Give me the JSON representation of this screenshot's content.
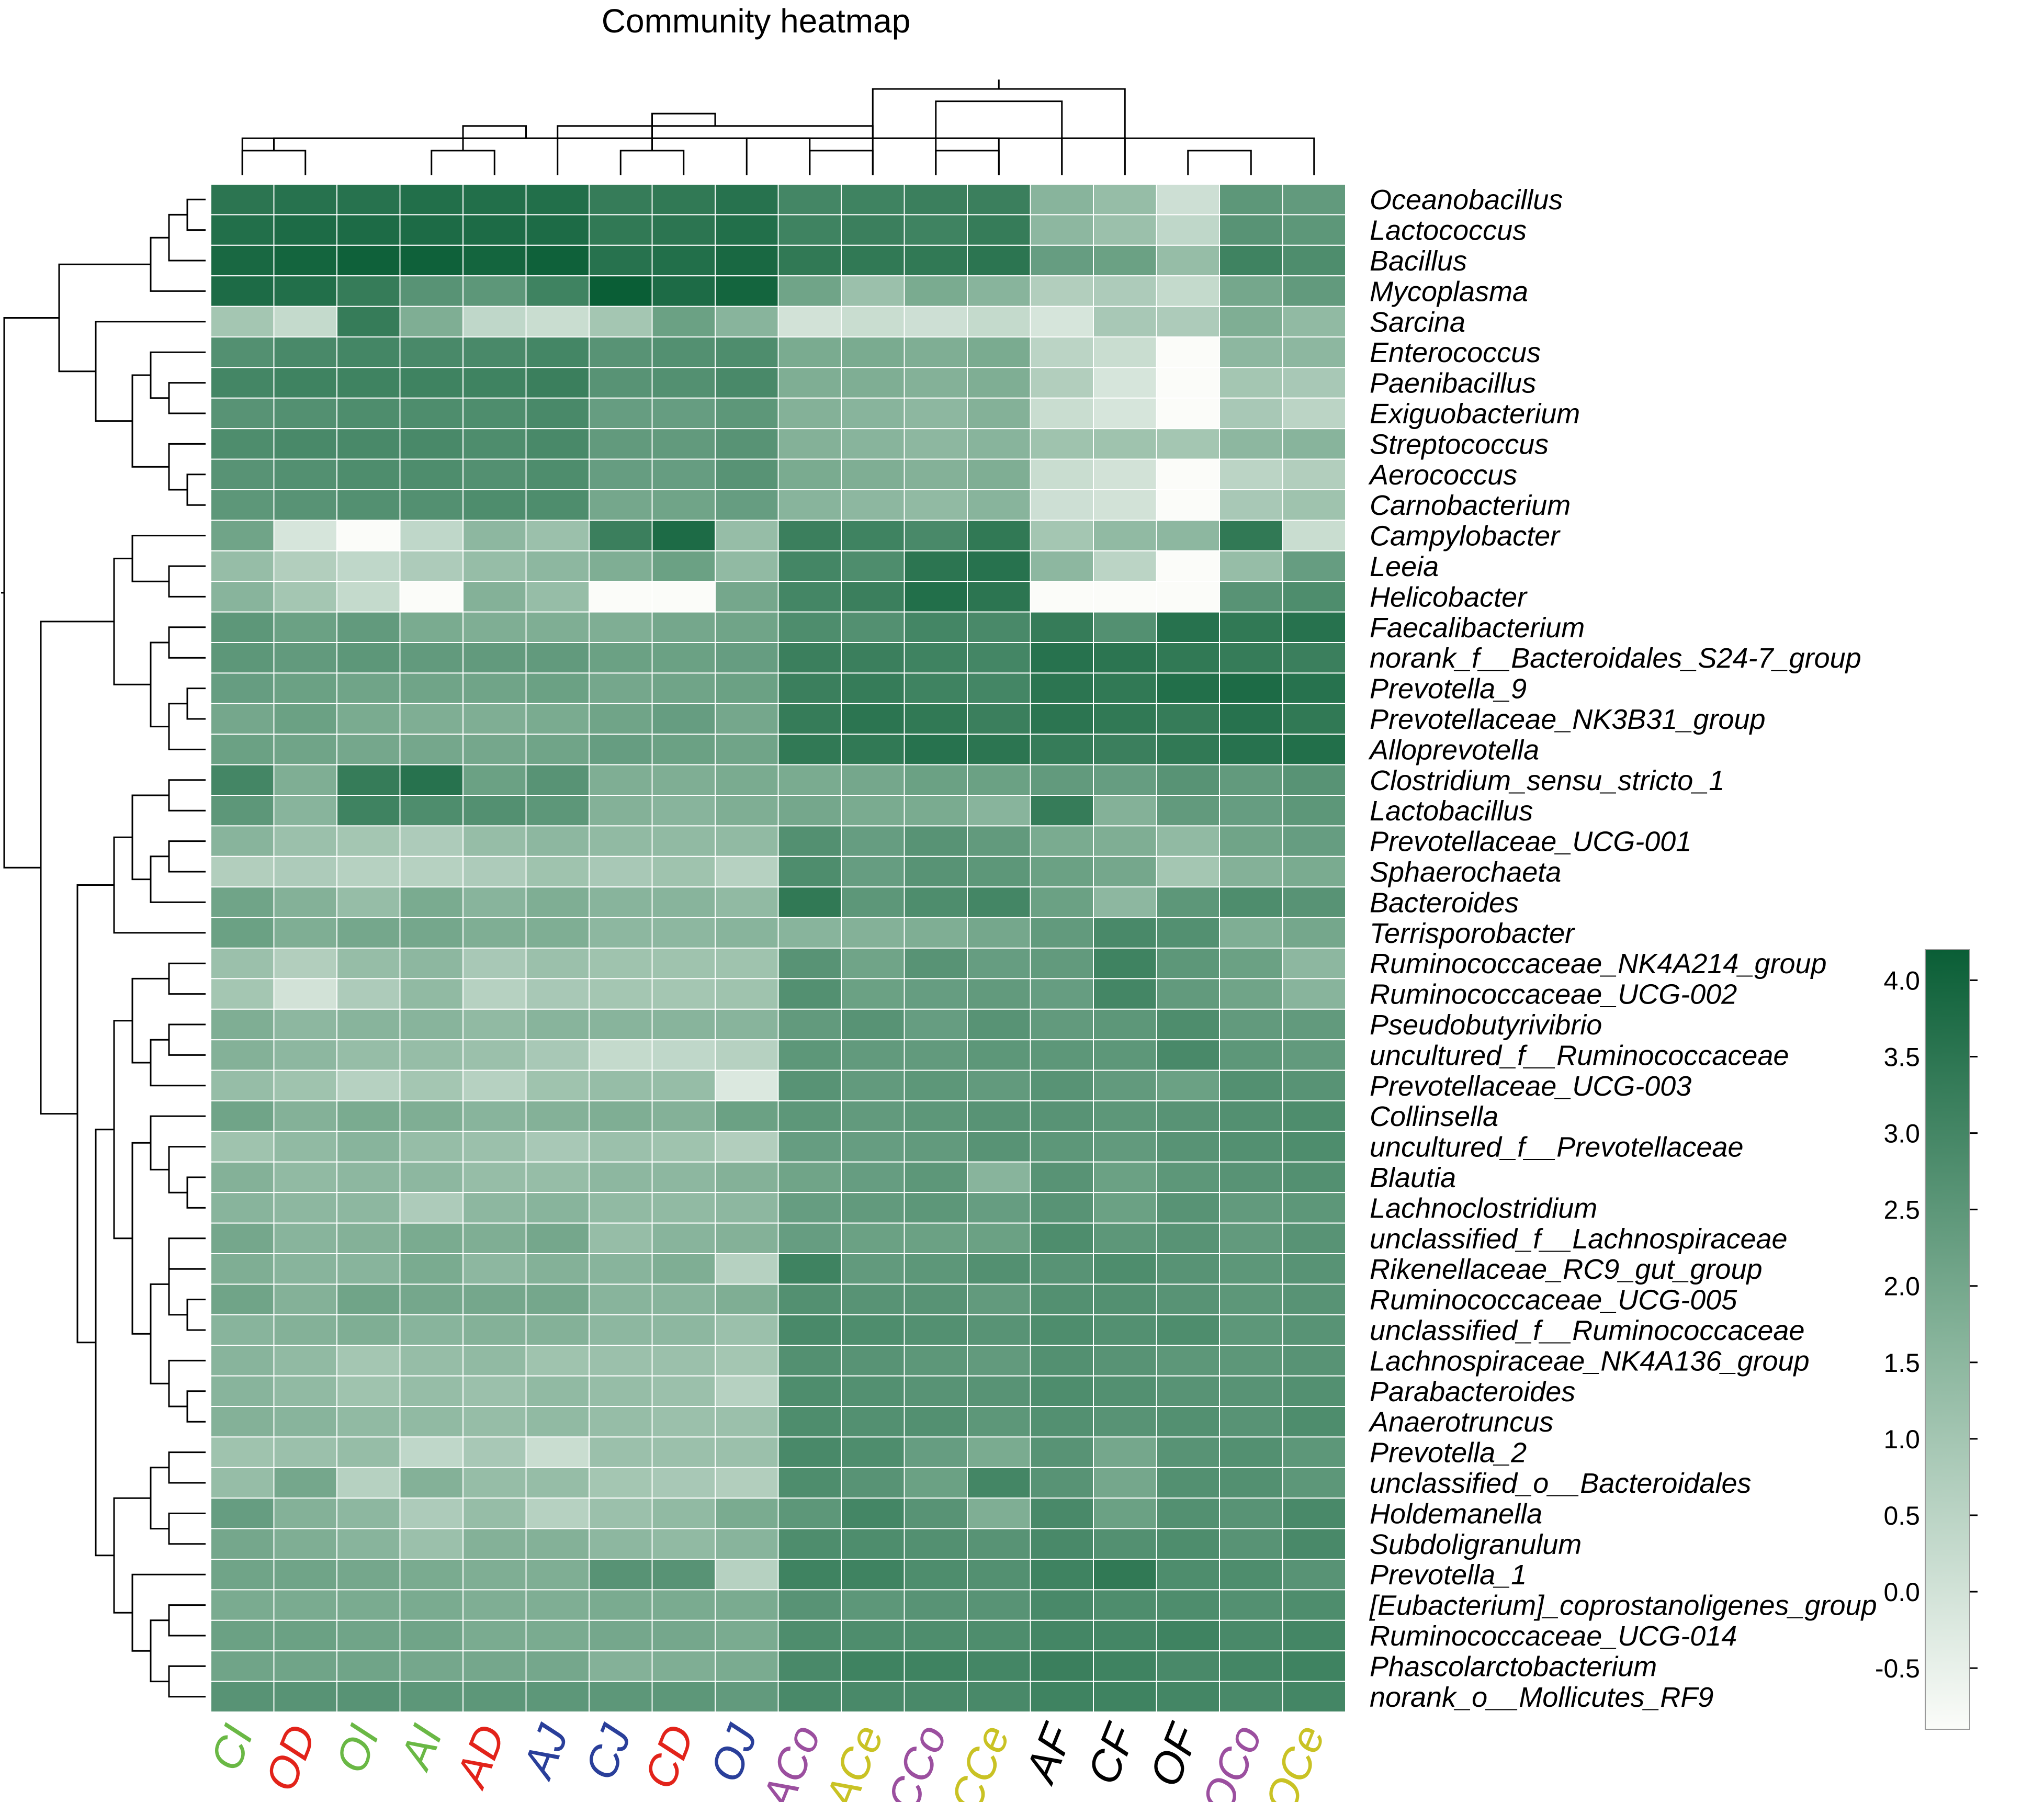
{
  "colors": {
    "low": "#fbfcf9",
    "mid": "#86b39a",
    "high": "#0a5e36",
    "grid": "#ffffff",
    "dendro": "#000000",
    "group_green": "#6ab845",
    "group_red": "#e2231a",
    "group_blue": "#2a3f9a",
    "group_purple": "#9b4f9f",
    "group_yellow": "#c9c224",
    "group_black": "#000000"
  },
  "chart_data": {
    "type": "heatmap",
    "title": "Community heatmap",
    "columns": [
      "CI",
      "OD",
      "OI",
      "AI",
      "AD",
      "AJ",
      "CJ",
      "CD",
      "OJ",
      "ACo",
      "ACe",
      "CCo",
      "CCe",
      "AF",
      "CF",
      "OF",
      "OCo",
      "OCe"
    ],
    "column_colors": [
      "group_green",
      "group_red",
      "group_green",
      "group_green",
      "group_red",
      "group_blue",
      "group_blue",
      "group_red",
      "group_blue",
      "group_purple",
      "group_yellow",
      "group_purple",
      "group_yellow",
      "group_black",
      "group_black",
      "group_black",
      "group_purple",
      "group_yellow"
    ],
    "rows": [
      "Oceanobacillus",
      "Lactococcus",
      "Bacillus",
      "Mycoplasma",
      "Sarcina",
      "Enterococcus",
      "Paenibacillus",
      "Exiguobacterium",
      "Streptococcus",
      "Aerococcus",
      "Carnobacterium",
      "Campylobacter",
      "Leeia",
      "Helicobacter",
      "Faecalibacterium",
      "norank_f__Bacteroidales_S24-7_group",
      "Prevotella_9",
      "Prevotellaceae_NK3B31_group",
      "Alloprevotella",
      "Clostridium_sensu_stricto_1",
      "Lactobacillus",
      "Prevotellaceae_UCG-001",
      "Sphaerochaeta",
      "Bacteroides",
      "Terrisporobacter",
      "Ruminococcaceae_NK4A214_group",
      "Ruminococcaceae_UCG-002",
      "Pseudobutyrivibrio",
      "uncultured_f__Ruminococcaceae",
      "Prevotellaceae_UCG-003",
      "Collinsella",
      "uncultured_f__Prevotellaceae",
      "Blautia",
      "Lachnoclostridium",
      "unclassified_f__Lachnospiraceae",
      "Rikenellaceae_RC9_gut_group",
      "Ruminococcaceae_UCG-005",
      "unclassified_f__Ruminococcaceae",
      "Lachnospiraceae_NK4A136_group",
      "Parabacteroides",
      "Anaerotruncus",
      "Prevotella_2",
      "unclassified_o__Bacteroidales",
      "Holdemanella",
      "Subdoligranulum",
      "Prevotella_1",
      "[Eubacterium]_coprostanoligenes_group",
      "Ruminococcaceae_UCG-014",
      "Phascolarctobacterium",
      "norank_o__Mollicutes_RF9"
    ],
    "values": [
      [
        3.5,
        3.6,
        3.6,
        3.7,
        3.7,
        3.7,
        3.3,
        3.4,
        3.6,
        3.0,
        3.1,
        3.2,
        3.2,
        1.6,
        1.3,
        0.1,
        2.5,
        2.4
      ],
      [
        3.7,
        3.8,
        3.8,
        3.8,
        3.8,
        3.8,
        3.4,
        3.5,
        3.7,
        3.1,
        3.2,
        3.1,
        3.3,
        1.5,
        1.2,
        0.4,
        2.6,
        2.5
      ],
      [
        3.9,
        4.0,
        4.1,
        4.1,
        4.0,
        4.1,
        3.6,
        3.7,
        3.9,
        3.4,
        3.4,
        3.4,
        3.5,
        2.3,
        2.2,
        1.3,
        3.1,
        2.8
      ],
      [
        3.8,
        3.7,
        3.3,
        2.6,
        2.5,
        3.1,
        4.2,
        3.8,
        4.0,
        2.1,
        1.2,
        1.9,
        1.6,
        0.7,
        0.8,
        0.3,
        2.0,
        2.4
      ],
      [
        1.0,
        0.3,
        3.3,
        1.8,
        0.4,
        0.2,
        1.0,
        2.2,
        1.6,
        0.0,
        0.2,
        0.1,
        0.3,
        -0.1,
        0.9,
        0.8,
        1.8,
        1.4
      ],
      [
        2.7,
        2.9,
        3.0,
        2.9,
        2.9,
        3.0,
        2.6,
        2.7,
        2.8,
        1.9,
        1.9,
        1.8,
        1.9,
        0.5,
        0.2,
        -0.9,
        1.5,
        1.5
      ],
      [
        3.0,
        3.1,
        3.1,
        3.1,
        3.1,
        3.2,
        2.6,
        2.7,
        2.9,
        1.8,
        1.8,
        1.7,
        1.8,
        0.7,
        -0.1,
        -0.9,
        1.0,
        0.9
      ],
      [
        2.6,
        2.7,
        2.8,
        2.8,
        2.8,
        2.9,
        2.3,
        2.3,
        2.5,
        1.7,
        1.6,
        1.5,
        1.7,
        0.2,
        -0.1,
        -0.9,
        0.9,
        0.5
      ],
      [
        2.8,
        2.9,
        2.9,
        2.9,
        2.8,
        2.9,
        2.4,
        2.4,
        2.6,
        1.7,
        1.6,
        1.5,
        1.6,
        1.1,
        1.1,
        1.0,
        1.5,
        1.6
      ],
      [
        2.6,
        2.7,
        2.8,
        2.8,
        2.7,
        2.8,
        2.3,
        2.3,
        2.6,
        1.9,
        1.8,
        1.7,
        1.8,
        0.2,
        0.0,
        -0.9,
        0.5,
        0.7
      ],
      [
        2.5,
        2.6,
        2.7,
        2.7,
        2.8,
        2.8,
        2.0,
        2.1,
        2.3,
        1.6,
        1.5,
        1.4,
        1.6,
        0.1,
        0.0,
        -0.9,
        0.9,
        1.1
      ],
      [
        2.1,
        -0.1,
        -0.9,
        0.4,
        1.5,
        1.2,
        3.2,
        3.8,
        1.3,
        3.2,
        3.1,
        2.9,
        3.4,
        1.0,
        1.4,
        1.5,
        3.4,
        0.2
      ],
      [
        1.3,
        0.7,
        0.4,
        0.8,
        1.3,
        1.5,
        1.8,
        2.2,
        1.4,
        3.0,
        2.8,
        3.5,
        3.6,
        1.5,
        0.5,
        -0.9,
        1.3,
        2.3
      ],
      [
        1.6,
        1.0,
        0.3,
        -0.9,
        1.7,
        1.3,
        -0.9,
        -0.9,
        2.0,
        3.0,
        3.2,
        3.7,
        3.5,
        -0.9,
        -0.9,
        -0.9,
        2.6,
        2.8
      ],
      [
        2.5,
        2.2,
        2.4,
        1.9,
        1.8,
        1.8,
        1.8,
        2.0,
        2.1,
        2.8,
        2.7,
        3.0,
        2.9,
        3.3,
        2.7,
        3.6,
        3.4,
        3.6
      ],
      [
        2.5,
        2.4,
        2.5,
        2.4,
        2.4,
        2.4,
        2.2,
        2.2,
        2.3,
        3.2,
        3.2,
        3.1,
        3.0,
        3.6,
        3.5,
        3.4,
        3.3,
        3.2
      ],
      [
        2.3,
        2.2,
        2.1,
        2.1,
        2.1,
        2.2,
        2.0,
        2.1,
        2.2,
        3.2,
        3.3,
        3.1,
        3.0,
        3.5,
        3.4,
        3.7,
        3.8,
        3.6
      ],
      [
        2.0,
        2.2,
        1.9,
        1.8,
        1.8,
        1.9,
        2.1,
        2.3,
        2.0,
        3.3,
        3.5,
        3.4,
        3.2,
        3.5,
        3.4,
        3.3,
        3.6,
        3.4
      ],
      [
        2.2,
        2.1,
        2.0,
        2.0,
        2.0,
        2.1,
        2.3,
        2.2,
        2.1,
        3.4,
        3.4,
        3.6,
        3.5,
        3.3,
        3.2,
        3.4,
        3.6,
        3.7
      ],
      [
        3.0,
        1.8,
        3.3,
        3.6,
        2.2,
        2.6,
        1.8,
        1.8,
        1.9,
        1.9,
        2.0,
        2.2,
        2.2,
        2.4,
        2.3,
        2.6,
        2.4,
        2.6
      ],
      [
        2.5,
        1.6,
        3.1,
        2.8,
        2.7,
        2.5,
        1.7,
        1.6,
        1.8,
        2.0,
        1.9,
        1.9,
        1.6,
        3.3,
        1.7,
        2.4,
        2.3,
        2.5
      ],
      [
        1.6,
        1.2,
        1.0,
        0.8,
        1.3,
        1.5,
        1.4,
        1.4,
        1.4,
        2.7,
        2.3,
        2.6,
        2.4,
        1.9,
        1.8,
        1.4,
        2.1,
        2.3
      ],
      [
        0.7,
        0.8,
        0.6,
        0.6,
        0.8,
        1.1,
        0.9,
        1.1,
        0.6,
        2.8,
        2.3,
        2.6,
        2.5,
        2.2,
        2.0,
        1.0,
        1.7,
        1.9
      ],
      [
        2.1,
        1.7,
        1.3,
        1.9,
        1.6,
        1.8,
        1.6,
        1.6,
        1.4,
        3.4,
        2.5,
        2.8,
        3.0,
        2.2,
        1.5,
        2.5,
        2.8,
        2.6
      ],
      [
        2.2,
        1.8,
        2.0,
        2.0,
        1.8,
        1.8,
        1.5,
        1.5,
        1.6,
        1.6,
        1.7,
        1.8,
        2.0,
        2.4,
        2.9,
        2.7,
        1.8,
        2.0
      ],
      [
        1.2,
        0.7,
        1.3,
        1.5,
        0.9,
        1.2,
        1.1,
        1.1,
        1.1,
        2.6,
        2.1,
        2.6,
        2.3,
        2.4,
        3.1,
        2.5,
        2.2,
        1.5
      ],
      [
        1.0,
        0.0,
        0.8,
        1.4,
        0.6,
        0.9,
        1.0,
        1.0,
        1.1,
        2.7,
        2.2,
        2.3,
        2.4,
        2.3,
        3.0,
        2.4,
        2.1,
        1.6
      ],
      [
        1.8,
        1.5,
        1.6,
        1.6,
        1.4,
        1.6,
        1.6,
        1.6,
        1.6,
        2.4,
        2.6,
        2.3,
        2.6,
        2.4,
        2.5,
        2.8,
        2.4,
        2.4
      ],
      [
        1.7,
        1.5,
        1.3,
        1.3,
        1.2,
        0.9,
        0.3,
        0.4,
        0.6,
        2.5,
        2.4,
        2.4,
        2.5,
        2.5,
        2.5,
        2.9,
        2.5,
        2.4
      ],
      [
        1.3,
        1.1,
        0.6,
        1.0,
        0.6,
        1.1,
        1.3,
        1.3,
        -0.2,
        2.6,
        2.4,
        2.5,
        2.4,
        2.6,
        2.4,
        2.2,
        2.7,
        2.6
      ],
      [
        2.1,
        1.7,
        1.9,
        1.8,
        1.6,
        1.7,
        1.8,
        1.7,
        2.2,
        2.5,
        2.4,
        2.5,
        2.6,
        2.6,
        2.5,
        2.6,
        2.7,
        2.8
      ],
      [
        1.1,
        1.4,
        1.6,
        1.3,
        1.2,
        0.9,
        1.2,
        1.1,
        0.7,
        2.3,
        2.3,
        2.4,
        2.6,
        2.5,
        2.4,
        2.6,
        2.7,
        2.8
      ],
      [
        1.7,
        1.4,
        1.5,
        1.5,
        1.3,
        1.3,
        1.5,
        1.5,
        1.7,
        2.1,
        2.3,
        2.5,
        1.6,
        2.6,
        2.2,
        2.5,
        2.6,
        2.7
      ],
      [
        1.6,
        1.5,
        1.5,
        0.8,
        1.5,
        1.6,
        1.4,
        1.4,
        1.5,
        2.3,
        2.4,
        2.5,
        2.3,
        2.6,
        2.2,
        2.6,
        2.4,
        2.5
      ],
      [
        2.0,
        1.6,
        1.7,
        1.9,
        1.8,
        2.0,
        1.3,
        1.6,
        1.7,
        2.3,
        2.2,
        2.2,
        2.2,
        2.8,
        2.5,
        2.6,
        2.4,
        2.6
      ],
      [
        1.8,
        1.6,
        1.6,
        1.9,
        1.5,
        1.7,
        1.6,
        1.8,
        0.6,
        3.1,
        2.4,
        2.5,
        2.7,
        2.6,
        2.8,
        2.6,
        2.5,
        2.6
      ],
      [
        2.1,
        1.7,
        2.1,
        2.0,
        2.0,
        2.0,
        1.6,
        1.6,
        1.8,
        2.7,
        2.6,
        2.6,
        2.4,
        2.7,
        2.7,
        2.6,
        2.5,
        2.6
      ],
      [
        1.6,
        1.7,
        1.8,
        1.6,
        1.7,
        1.7,
        1.5,
        1.5,
        1.2,
        2.9,
        2.8,
        2.7,
        2.6,
        2.8,
        2.7,
        2.8,
        2.5,
        2.6
      ],
      [
        1.6,
        1.4,
        1.0,
        1.3,
        1.4,
        1.1,
        1.2,
        1.2,
        1.0,
        2.7,
        2.6,
        2.5,
        2.4,
        2.7,
        2.6,
        2.5,
        2.5,
        2.6
      ],
      [
        1.6,
        1.4,
        1.1,
        1.3,
        1.2,
        1.4,
        1.3,
        1.2,
        0.6,
        2.8,
        2.7,
        2.6,
        2.6,
        2.8,
        2.7,
        2.6,
        2.6,
        2.7
      ],
      [
        1.7,
        1.6,
        1.4,
        1.4,
        1.3,
        1.4,
        1.3,
        1.2,
        1.2,
        2.8,
        2.7,
        2.7,
        2.5,
        2.7,
        2.6,
        2.7,
        2.6,
        2.8
      ],
      [
        1.1,
        1.2,
        1.3,
        0.4,
        0.9,
        0.2,
        1.2,
        1.2,
        1.2,
        2.9,
        2.8,
        2.3,
        1.9,
        2.6,
        2.0,
        2.6,
        2.7,
        2.5
      ],
      [
        1.3,
        2.0,
        0.6,
        1.7,
        1.3,
        1.3,
        1.0,
        0.9,
        0.7,
        2.8,
        2.6,
        2.2,
        3.0,
        2.6,
        2.0,
        2.7,
        2.7,
        2.5
      ],
      [
        2.3,
        1.7,
        1.5,
        0.8,
        1.3,
        0.6,
        1.2,
        1.4,
        1.9,
        2.5,
        3.0,
        2.6,
        1.8,
        2.9,
        2.2,
        2.7,
        2.6,
        2.9
      ],
      [
        2.0,
        1.8,
        1.6,
        1.2,
        1.7,
        1.7,
        1.5,
        1.4,
        1.6,
        2.8,
        2.8,
        2.7,
        2.6,
        2.9,
        2.7,
        2.8,
        2.6,
        2.9
      ],
      [
        2.1,
        2.1,
        2.0,
        1.9,
        1.8,
        1.8,
        2.6,
        2.6,
        0.6,
        3.1,
        3.1,
        2.8,
        2.7,
        3.1,
        3.4,
        2.8,
        2.8,
        2.6
      ],
      [
        1.9,
        1.9,
        1.9,
        1.9,
        1.8,
        1.8,
        1.9,
        1.9,
        1.9,
        2.6,
        2.5,
        2.6,
        2.6,
        2.9,
        2.8,
        2.8,
        2.7,
        2.8
      ],
      [
        2.2,
        2.2,
        2.1,
        2.1,
        1.9,
        1.9,
        2.0,
        2.0,
        1.9,
        2.8,
        2.8,
        2.8,
        2.8,
        3.0,
        3.0,
        3.1,
        2.9,
        3.0
      ],
      [
        2.1,
        2.1,
        2.1,
        2.0,
        2.0,
        2.0,
        1.7,
        1.8,
        1.9,
        2.9,
        3.1,
        3.1,
        3.0,
        3.2,
        3.1,
        2.9,
        3.0,
        3.1
      ],
      [
        2.6,
        2.6,
        2.6,
        2.5,
        2.5,
        2.5,
        2.5,
        2.5,
        2.4,
        2.9,
        2.9,
        2.9,
        2.9,
        3.1,
        3.1,
        3.0,
        2.9,
        3.0
      ]
    ],
    "colorbar": {
      "ticks": [
        "4.0",
        "3.5",
        "3.0",
        "2.5",
        "2.0",
        "1.5",
        "1.0",
        "0.5",
        "0.0",
        "-0.5"
      ],
      "range": [
        -0.9,
        4.2
      ]
    },
    "column_dendrogram": [
      [
        0,
        1,
        2
      ],
      [
        3,
        4,
        2
      ],
      [
        9,
        0,
        3
      ],
      [
        5,
        10,
        4
      ],
      [
        6,
        7,
        2
      ],
      [
        8,
        12,
        3
      ],
      [
        11,
        13,
        6
      ],
      [
        9,
        10,
        2
      ],
      [
        11,
        12,
        2
      ],
      [
        15,
        16,
        2
      ],
      [
        13,
        17,
        3
      ],
      [
        14,
        18,
        3
      ],
      [
        19,
        20,
        4
      ],
      [
        21,
        22,
        5
      ],
      [
        14,
        23,
        7
      ]
    ],
    "row_dendrogram": [
      [
        0,
        1,
        1
      ],
      [
        50,
        2,
        2
      ],
      [
        51,
        3,
        3
      ],
      [
        9,
        10,
        1
      ],
      [
        8,
        53,
        2
      ],
      [
        6,
        7,
        2
      ],
      [
        5,
        55,
        3
      ],
      [
        54,
        56,
        4
      ],
      [
        4,
        57,
        6
      ],
      [
        52,
        58,
        8
      ],
      [
        12,
        13,
        2
      ],
      [
        11,
        60,
        4
      ],
      [
        14,
        15,
        2
      ],
      [
        16,
        17,
        1
      ],
      [
        18,
        63,
        2
      ],
      [
        62,
        64,
        3
      ],
      [
        61,
        65,
        5
      ],
      [
        19,
        20,
        2
      ],
      [
        21,
        22,
        2
      ],
      [
        23,
        68,
        3
      ],
      [
        67,
        69,
        4
      ],
      [
        24,
        70,
        5
      ],
      [
        25,
        26,
        2
      ],
      [
        27,
        28,
        2
      ],
      [
        29,
        73,
        3
      ],
      [
        72,
        74,
        4
      ],
      [
        32,
        33,
        1
      ],
      [
        31,
        76,
        2
      ],
      [
        30,
        77,
        3
      ],
      [
        34,
        35,
        2
      ],
      [
        36,
        37,
        1
      ],
      [
        79,
        80,
        2
      ],
      [
        39,
        40,
        1
      ],
      [
        38,
        82,
        2
      ],
      [
        81,
        83,
        3
      ],
      [
        78,
        84,
        4
      ],
      [
        75,
        85,
        5
      ],
      [
        41,
        42,
        2
      ],
      [
        43,
        44,
        2
      ],
      [
        87,
        88,
        3
      ],
      [
        46,
        47,
        2
      ],
      [
        48,
        49,
        2
      ],
      [
        90,
        91,
        3
      ],
      [
        45,
        92,
        4
      ],
      [
        89,
        93,
        5
      ],
      [
        86,
        94,
        6
      ],
      [
        71,
        95,
        7
      ],
      [
        66,
        96,
        9
      ],
      [
        59,
        97,
        11
      ]
    ]
  }
}
